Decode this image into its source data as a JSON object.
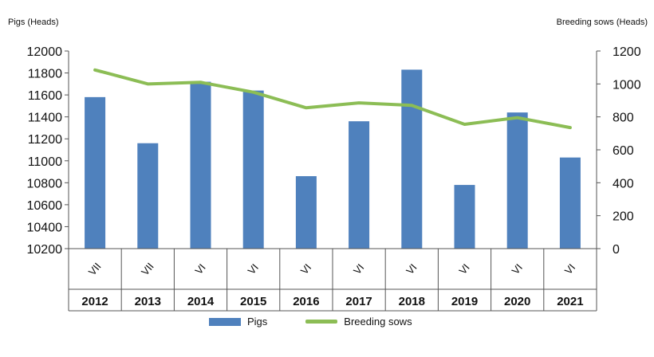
{
  "chart_data": {
    "type": "bar",
    "y_axis_left": {
      "label": "Pigs (Heads)",
      "min": 10200,
      "max": 12000,
      "ticks": [
        10200,
        10400,
        10600,
        10800,
        11000,
        11200,
        11400,
        11600,
        11800,
        12000
      ]
    },
    "y_axis_right": {
      "label": "Breeding sows (Heads)",
      "min": 0,
      "max": 1200,
      "ticks": [
        0,
        200,
        400,
        600,
        800,
        1000,
        1200
      ]
    },
    "categories": [
      "VII",
      "VII",
      "VI",
      "VI",
      "VI",
      "VI",
      "VI",
      "VI",
      "VI",
      "VI"
    ],
    "years": [
      "2012",
      "2013",
      "2014",
      "2015",
      "2016",
      "2017",
      "2018",
      "2019",
      "2020",
      "2021"
    ],
    "series": [
      {
        "name": "Pigs",
        "type": "bar",
        "axis": "left",
        "color": "#4f81bd",
        "values": [
          11580,
          11160,
          11720,
          11640,
          10860,
          11360,
          11830,
          10780,
          11440,
          11030
        ]
      },
      {
        "name": "Breeding sows",
        "type": "line",
        "axis": "right",
        "color": "#8cbd55",
        "values": [
          1085,
          1000,
          1010,
          950,
          855,
          885,
          870,
          755,
          795,
          735
        ]
      }
    ],
    "legend_position": "bottom",
    "grid": false
  }
}
